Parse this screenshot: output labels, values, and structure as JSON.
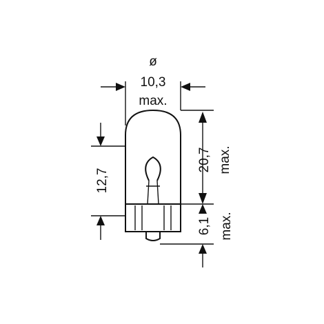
{
  "diagram": {
    "diameter_symbol": "ø",
    "diameter_value": "10,3",
    "diameter_note": "max.",
    "height_full_value": "20,7",
    "height_full_note": "max.",
    "height_glass_value": "12,7",
    "height_base_value": "6,1",
    "height_base_note": "max."
  }
}
